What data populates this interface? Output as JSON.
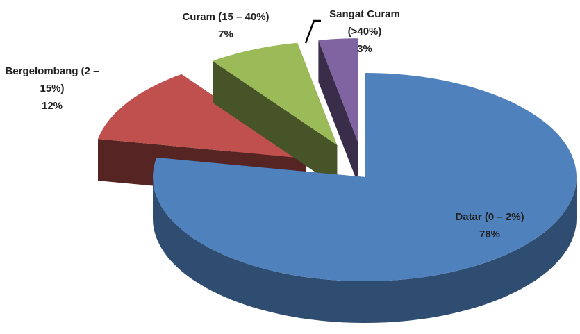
{
  "chart_data": {
    "type": "pie",
    "categories": [
      "Datar (0 – 2%)",
      "Bergelombang (2 – 15%)",
      "Curam (15 – 40%)",
      "Sangat Curam (>40%)"
    ],
    "values": [
      78,
      12,
      7,
      3
    ],
    "value_labels": [
      "78%",
      "12%",
      "7%",
      "3%"
    ],
    "colors": [
      "#4f81bd",
      "#c0504d",
      "#9bbb59",
      "#8064a2"
    ]
  }
}
